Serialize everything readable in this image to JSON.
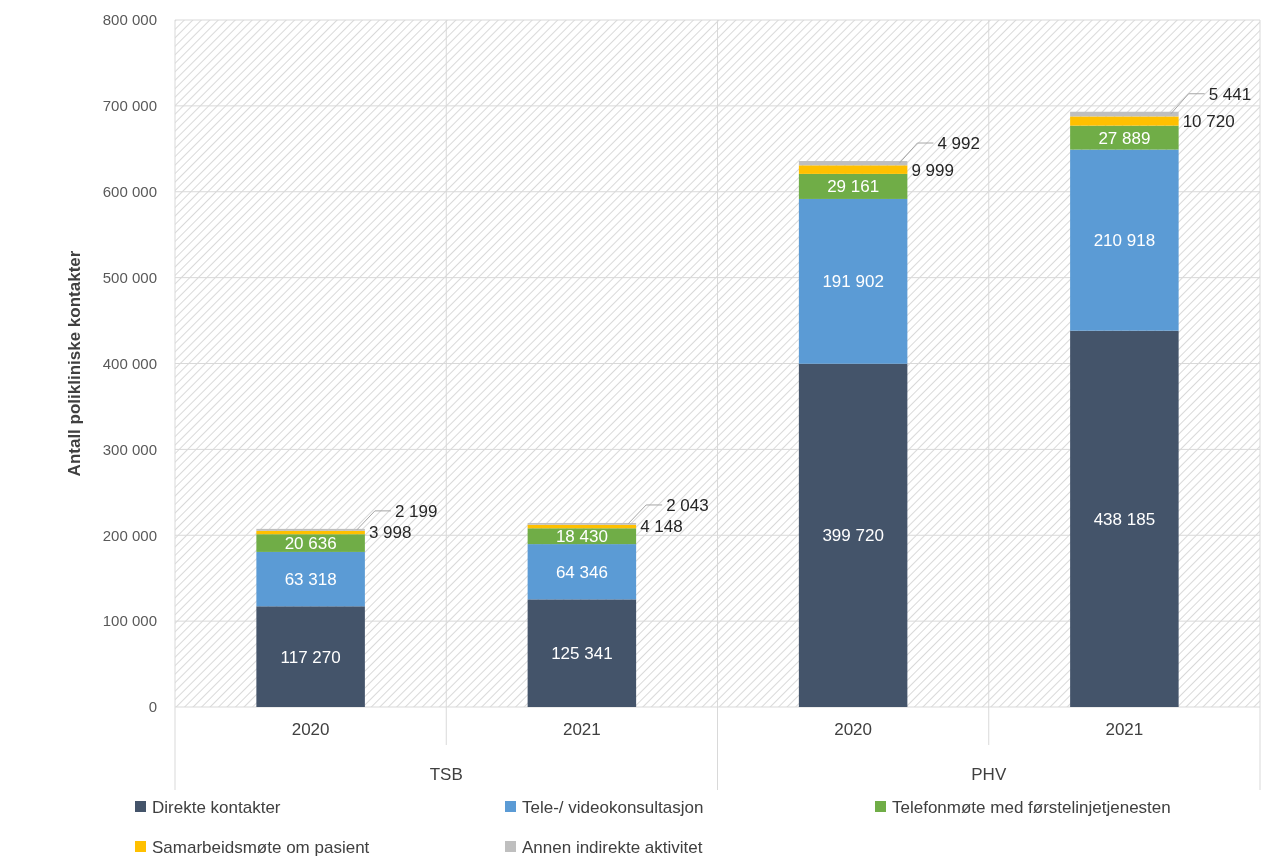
{
  "chart_data": {
    "type": "bar",
    "stacked": true,
    "ylabel": "Antall polikliniske kontakter",
    "categories": [
      "2020",
      "2021",
      "2020",
      "2021"
    ],
    "annotations": [
      {
        "text": "TSB"
      },
      {
        "text": "PHV"
      }
    ],
    "series": [
      {
        "name": "Direkte kontakter",
        "color": "#44546a",
        "values": [
          117270,
          125341,
          399720,
          438185
        ]
      },
      {
        "name": "Tele-/ videokonsultasjon",
        "color": "#5b9bd5",
        "values": [
          63318,
          64346,
          191902,
          210918
        ]
      },
      {
        "name": "Telefonmøte med førstelinjetjenesten",
        "color": "#70ad47",
        "values": [
          20636,
          18430,
          29161,
          27889
        ]
      },
      {
        "name": "Samarbeidsmøte om pasient",
        "color": "#ffc000",
        "values": [
          3998,
          4148,
          9999,
          10720
        ]
      },
      {
        "name": "Annen indirekte aktivitet",
        "color": "#bfbfbf",
        "values": [
          2199,
          2043,
          4992,
          5441
        ]
      }
    ],
    "ylim": [
      0,
      800000
    ],
    "yticks": [
      0,
      {
        "value": 100000,
        "label": "100 000"
      },
      {
        "value": 200000,
        "label": "200 000"
      },
      {
        "value": 300000,
        "label": "300 000"
      },
      {
        "value": 400000,
        "label": "400 000"
      },
      {
        "value": 500000,
        "label": "500 000"
      },
      {
        "value": 600000,
        "label": "600 000"
      },
      {
        "value": 700000,
        "label": "700 000"
      },
      {
        "value": 800000,
        "label": "800 000"
      }
    ],
    "grid": "y",
    "data_labels": true,
    "legend": "bottom"
  }
}
